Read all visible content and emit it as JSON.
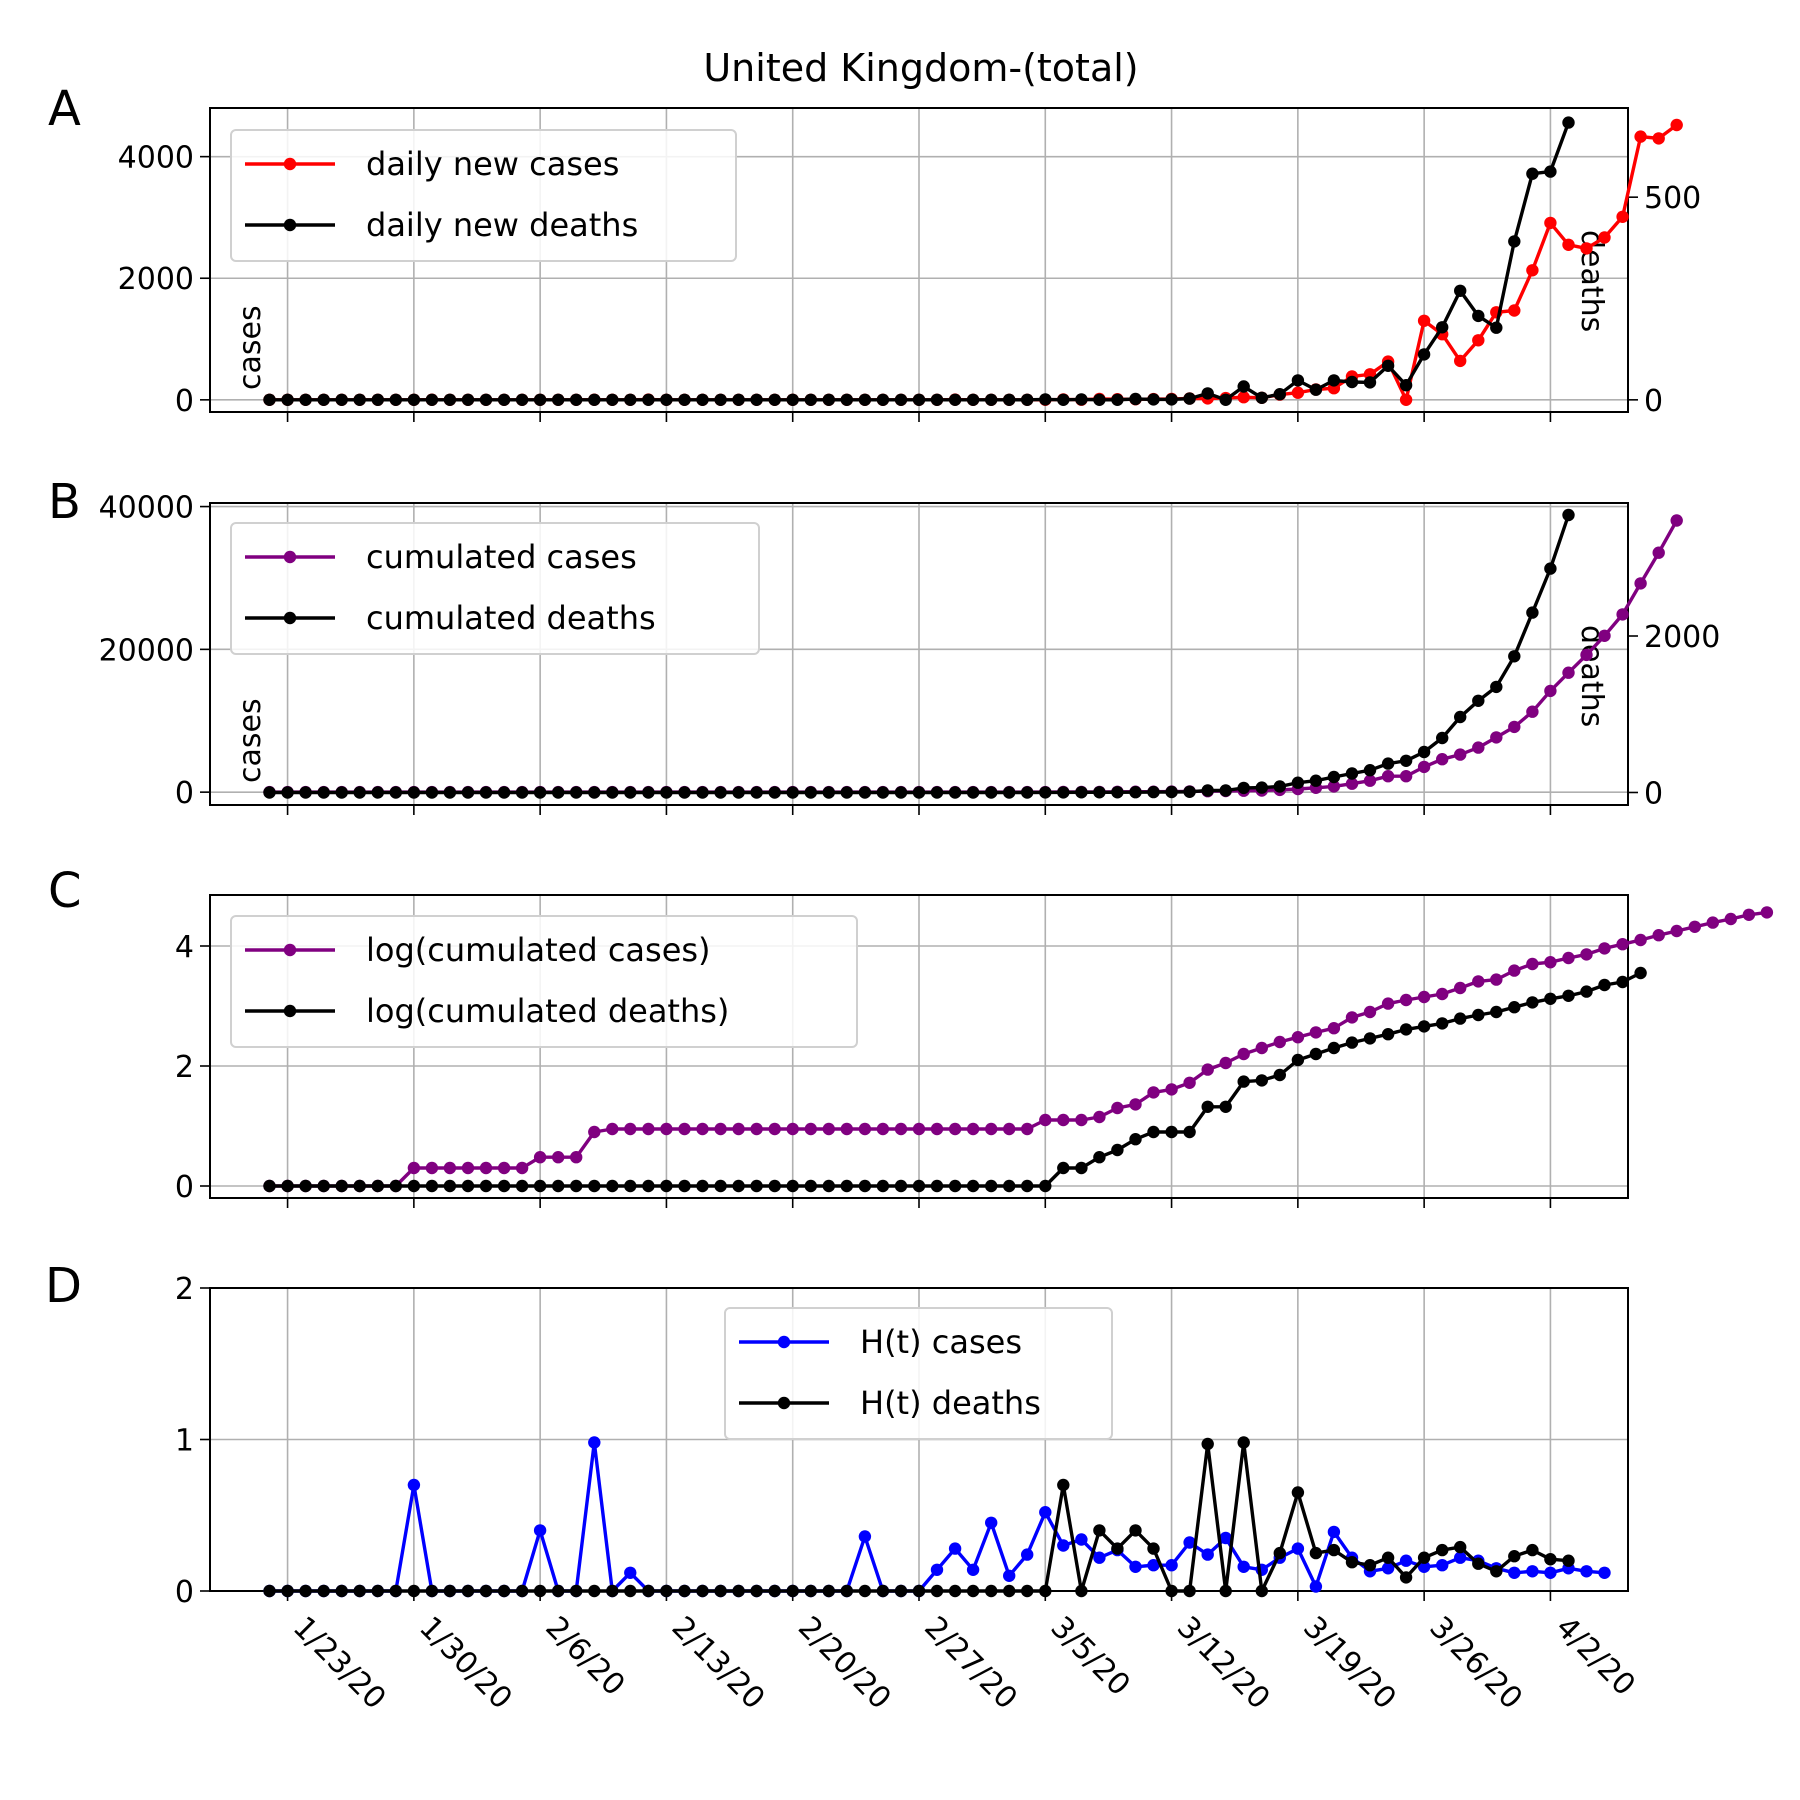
{
  "figure": {
    "title": "United Kingdom-(total)",
    "dates": [
      "1/23/20",
      "1/30/20",
      "2/6/20",
      "2/13/20",
      "2/20/20",
      "2/27/20",
      "3/5/20",
      "3/12/20",
      "3/19/20",
      "3/26/20",
      "4/2/20"
    ]
  },
  "chart_data": [
    {
      "type": "line",
      "panel": "A",
      "title": "United Kingdom-(total)",
      "ylabel": "cases",
      "y2label": "deaths",
      "x_start": "1/22/20",
      "x_end": "4/3/20",
      "ylim": [
        -200,
        4800
      ],
      "y2lim": [
        -30,
        720
      ],
      "yticks": [
        "0",
        "2000",
        "4000"
      ],
      "y2ticks": [
        "0",
        "500"
      ],
      "grid": true,
      "legend_position": "top-left",
      "colors": {
        "cases": "#ff0000",
        "deaths": "#000000"
      },
      "series": [
        {
          "name": "daily new cases",
          "axis": "left",
          "values": [
            0,
            0,
            0,
            0,
            0,
            0,
            0,
            0,
            0,
            2,
            0,
            0,
            0,
            0,
            0,
            1,
            0,
            0,
            3,
            1,
            1,
            4,
            0,
            0,
            0,
            0,
            0,
            0,
            0,
            0,
            0,
            0,
            0,
            0,
            0,
            0,
            0,
            0,
            4,
            0,
            1,
            0,
            0,
            0,
            7,
            3,
            13,
            10,
            11,
            12,
            13,
            22,
            24,
            28,
            44,
            34,
            87,
            117,
            170,
            192,
            384,
            420,
            629,
            0,
            1300,
            1080,
            640,
            980,
            1440,
            1470,
            2130,
            2910,
            2550,
            2490,
            2670,
            3010,
            4330,
            4300,
            4520
          ]
        },
        {
          "name": "daily new deaths",
          "axis": "right",
          "values": [
            0,
            0,
            0,
            0,
            0,
            0,
            0,
            0,
            0,
            0,
            0,
            0,
            0,
            0,
            0,
            0,
            0,
            0,
            0,
            0,
            0,
            0,
            0,
            0,
            0,
            0,
            0,
            0,
            0,
            0,
            0,
            0,
            0,
            0,
            0,
            0,
            0,
            0,
            0,
            0,
            0,
            0,
            0,
            1,
            0,
            1,
            0,
            0,
            2,
            1,
            1,
            3,
            16,
            0,
            33,
            5,
            14,
            48,
            25,
            48,
            44,
            43,
            84,
            36,
            112,
            179,
            269,
            207,
            178,
            391,
            558,
            563,
            684
          ]
        }
      ]
    },
    {
      "type": "line",
      "panel": "B",
      "ylabel": "cases",
      "y2label": "deaths",
      "x_start": "1/22/20",
      "x_end": "4/3/20",
      "ylim": [
        -1800,
        40500
      ],
      "y2lim": [
        -160,
        3700
      ],
      "yticks": [
        "0",
        "20000",
        "40000"
      ],
      "y2ticks": [
        "0",
        "2000"
      ],
      "grid": true,
      "legend_position": "top-left",
      "colors": {
        "cases": "#800080",
        "deaths": "#000000"
      },
      "series": [
        {
          "name": "cumulated cases",
          "axis": "left",
          "values": [
            0,
            0,
            0,
            0,
            0,
            0,
            0,
            0,
            0,
            2,
            2,
            2,
            2,
            2,
            2,
            3,
            3,
            3,
            8,
            9,
            9,
            13,
            13,
            13,
            13,
            13,
            13,
            13,
            13,
            13,
            13,
            13,
            13,
            13,
            13,
            13,
            13,
            13,
            13,
            13,
            13,
            13,
            13,
            13,
            20,
            23,
            36,
            46,
            57,
            69,
            82,
            104,
            128,
            156,
            200,
            234,
            321,
            438,
            608,
            800,
            1184,
            1604,
            2233,
            2233,
            3533,
            4613,
            5253,
            6233,
            7673,
            9143,
            11273,
            14183,
            16733,
            19223,
            21893,
            24903,
            29233,
            33533,
            38053
          ]
        },
        {
          "name": "cumulated deaths",
          "axis": "right",
          "values": [
            0,
            0,
            0,
            0,
            0,
            0,
            0,
            0,
            0,
            0,
            0,
            0,
            0,
            0,
            0,
            0,
            0,
            0,
            0,
            0,
            0,
            0,
            0,
            0,
            0,
            0,
            0,
            0,
            0,
            0,
            0,
            0,
            0,
            0,
            0,
            0,
            0,
            0,
            0,
            0,
            0,
            0,
            0,
            1,
            1,
            2,
            2,
            2,
            4,
            5,
            6,
            9,
            25,
            25,
            58,
            63,
            77,
            125,
            150,
            198,
            242,
            285,
            369,
            405,
            517,
            696,
            965,
            1172,
            1350,
            1741,
            2299,
            2862,
            3546
          ]
        }
      ]
    },
    {
      "type": "line",
      "panel": "C",
      "ylim": [
        -0.2,
        4.85
      ],
      "yticks": [
        "0",
        "2",
        "4"
      ],
      "grid": true,
      "legend_position": "top-left",
      "colors": {
        "cases": "#800080",
        "deaths": "#000000"
      },
      "series": [
        {
          "name": "log(cumulated cases)",
          "values": [
            0,
            0,
            0,
            0,
            0,
            0,
            0,
            0,
            0.3,
            0.3,
            0.3,
            0.3,
            0.3,
            0.3,
            0.3,
            0.48,
            0.48,
            0.48,
            0.9,
            0.95,
            0.95,
            0.95,
            0.95,
            0.95,
            0.95,
            0.95,
            0.95,
            0.95,
            0.95,
            0.95,
            0.95,
            0.95,
            0.95,
            0.95,
            0.95,
            0.95,
            0.95,
            0.95,
            0.95,
            0.95,
            0.95,
            0.95,
            0.95,
            1.1,
            1.1,
            1.1,
            1.15,
            1.3,
            1.36,
            1.56,
            1.61,
            1.72,
            1.94,
            2.05,
            2.2,
            2.3,
            2.4,
            2.48,
            2.56,
            2.63,
            2.81,
            2.9,
            3.04,
            3.1,
            3.15,
            3.2,
            3.3,
            3.41,
            3.44,
            3.59,
            3.7,
            3.73,
            3.8,
            3.86,
            3.96,
            4.03,
            4.1,
            4.18,
            4.25,
            4.32,
            4.39,
            4.45,
            4.52,
            4.56
          ]
        },
        {
          "name": "log(cumulated deaths)",
          "values": [
            0,
            0,
            0,
            0,
            0,
            0,
            0,
            0,
            0,
            0,
            0,
            0,
            0,
            0,
            0,
            0,
            0,
            0,
            0,
            0,
            0,
            0,
            0,
            0,
            0,
            0,
            0,
            0,
            0,
            0,
            0,
            0,
            0,
            0,
            0,
            0,
            0,
            0,
            0,
            0,
            0,
            0,
            0,
            0,
            0.3,
            0.3,
            0.48,
            0.6,
            0.78,
            0.9,
            0.9,
            0.9,
            1.32,
            1.32,
            1.74,
            1.76,
            1.85,
            2.1,
            2.2,
            2.3,
            2.39,
            2.46,
            2.53,
            2.61,
            2.66,
            2.71,
            2.79,
            2.85,
            2.9,
            2.98,
            3.06,
            3.12,
            3.17,
            3.24,
            3.35,
            3.4,
            3.55
          ]
        }
      ]
    },
    {
      "type": "line",
      "panel": "D",
      "ylim": [
        0,
        2
      ],
      "yticks": [
        "0",
        "1",
        "2"
      ],
      "grid": true,
      "legend_position": "top-center",
      "colors": {
        "cases": "#0000ff",
        "deaths": "#000000"
      },
      "series": [
        {
          "name": "H(t) cases",
          "values": [
            0,
            0,
            0,
            0,
            0,
            0,
            0,
            0,
            0.7,
            0,
            0,
            0,
            0,
            0,
            0,
            0.4,
            0,
            0,
            0.98,
            0,
            0.12,
            0,
            0,
            0,
            0,
            0,
            0,
            0,
            0,
            0,
            0,
            0,
            0,
            0.36,
            0,
            0,
            0,
            0.14,
            0.28,
            0.14,
            0.45,
            0.1,
            0.24,
            0.52,
            0.3,
            0.34,
            0.22,
            0.27,
            0.16,
            0.17,
            0.17,
            0.32,
            0.24,
            0.35,
            0.16,
            0.14,
            0.22,
            0.28,
            0.03,
            0.39,
            0.22,
            0.13,
            0.15,
            0.2,
            0.16,
            0.17,
            0.22,
            0.2,
            0.15,
            0.12,
            0.13,
            0.12,
            0.15,
            0.13,
            0.12
          ]
        },
        {
          "name": "H(t) deaths",
          "values": [
            0,
            0,
            0,
            0,
            0,
            0,
            0,
            0,
            0,
            0,
            0,
            0,
            0,
            0,
            0,
            0,
            0,
            0,
            0,
            0,
            0,
            0,
            0,
            0,
            0,
            0,
            0,
            0,
            0,
            0,
            0,
            0,
            0,
            0,
            0,
            0,
            0,
            0,
            0,
            0,
            0,
            0,
            0,
            0,
            0.7,
            0,
            0.4,
            0.28,
            0.4,
            0.28,
            0,
            0,
            0.97,
            0,
            0.98,
            0,
            0.25,
            0.65,
            0.25,
            0.27,
            0.19,
            0.17,
            0.22,
            0.09,
            0.22,
            0.27,
            0.29,
            0.18,
            0.13,
            0.23,
            0.27,
            0.21,
            0.2
          ]
        }
      ]
    }
  ]
}
